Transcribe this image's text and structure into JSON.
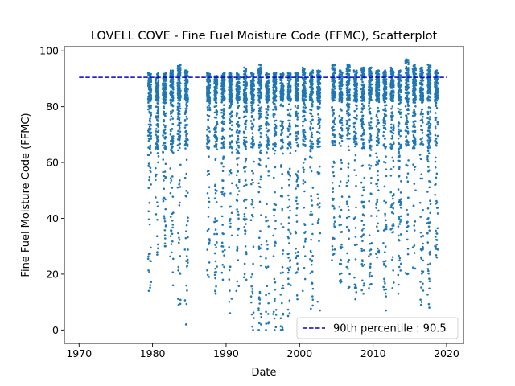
{
  "chart_data": {
    "type": "scatter",
    "title": "LOVELL COVE - Fine Fuel Moisture Code (FFMC), Scatterplot",
    "xlabel": "Date",
    "ylabel": "Fine Fuel Moisture Code (FFMC)",
    "xlim": [
      1968.0,
      2022.3
    ],
    "ylim": [
      -4.8,
      101.5
    ],
    "xticks": [
      1970,
      1980,
      1990,
      2000,
      2010,
      2020
    ],
    "yticks": [
      0,
      20,
      40,
      60,
      80,
      100
    ],
    "point_color": "#1f77b4",
    "reference_line": {
      "label": "90th percentile : 90.5",
      "value": 90.5,
      "x_range": [
        1970,
        2020
      ],
      "color": "#0000cc",
      "style": "dashed"
    },
    "legend_position": "lower-right",
    "series": [
      {
        "description": "Daily FFMC observations, fire seasons (~May–Oct) of each year",
        "seasons": [
          {
            "year": 1979,
            "start": 1979.4,
            "end": 1979.82,
            "min": 14,
            "max": 92
          },
          {
            "year": 1980,
            "start": 1980.4,
            "end": 1980.82,
            "min": 27,
            "max": 92
          },
          {
            "year": 1981,
            "start": 1981.4,
            "end": 1981.82,
            "min": 30,
            "max": 92
          },
          {
            "year": 1982,
            "start": 1982.4,
            "end": 1982.82,
            "min": 16,
            "max": 93
          },
          {
            "year": 1983,
            "start": 1983.4,
            "end": 1983.82,
            "min": 9,
            "max": 95
          },
          {
            "year": 1984,
            "start": 1984.4,
            "end": 1984.82,
            "min": 2,
            "max": 93
          },
          {
            "year": 1987,
            "start": 1987.4,
            "end": 1987.82,
            "min": 19,
            "max": 92
          },
          {
            "year": 1988,
            "start": 1988.4,
            "end": 1988.82,
            "min": 13,
            "max": 91
          },
          {
            "year": 1989,
            "start": 1989.4,
            "end": 1989.82,
            "min": 18,
            "max": 92
          },
          {
            "year": 1990,
            "start": 1990.4,
            "end": 1990.82,
            "min": 6,
            "max": 92
          },
          {
            "year": 1991,
            "start": 1991.4,
            "end": 1991.82,
            "min": 14,
            "max": 92
          },
          {
            "year": 1992,
            "start": 1992.4,
            "end": 1992.82,
            "min": 18,
            "max": 94
          },
          {
            "year": 1993,
            "start": 1993.4,
            "end": 1993.82,
            "min": 0,
            "max": 92
          },
          {
            "year": 1994,
            "start": 1994.4,
            "end": 1994.82,
            "min": 0,
            "max": 95
          },
          {
            "year": 1995,
            "start": 1995.4,
            "end": 1995.82,
            "min": 0,
            "max": 92
          },
          {
            "year": 1996,
            "start": 1996.4,
            "end": 1996.82,
            "min": 0,
            "max": 92
          },
          {
            "year": 1997,
            "start": 1997.4,
            "end": 1997.82,
            "min": 0,
            "max": 92
          },
          {
            "year": 1998,
            "start": 1998.4,
            "end": 1998.82,
            "min": 5,
            "max": 92
          },
          {
            "year": 1999,
            "start": 1999.4,
            "end": 1999.82,
            "min": 11,
            "max": 92
          },
          {
            "year": 2000,
            "start": 2000.4,
            "end": 2000.82,
            "min": 14,
            "max": 94
          },
          {
            "year": 2001,
            "start": 2001.4,
            "end": 2001.82,
            "min": 3,
            "max": 93
          },
          {
            "year": 2002,
            "start": 2002.4,
            "end": 2002.82,
            "min": 7,
            "max": 93
          },
          {
            "year": 2004,
            "start": 2004.4,
            "end": 2004.82,
            "min": 25,
            "max": 95
          },
          {
            "year": 2005,
            "start": 2005.4,
            "end": 2005.82,
            "min": 17,
            "max": 93
          },
          {
            "year": 2006,
            "start": 2006.4,
            "end": 2006.82,
            "min": 15,
            "max": 95
          },
          {
            "year": 2007,
            "start": 2007.4,
            "end": 2007.82,
            "min": 11,
            "max": 93
          },
          {
            "year": 2008,
            "start": 2008.4,
            "end": 2008.82,
            "min": 13,
            "max": 94
          },
          {
            "year": 2009,
            "start": 2009.4,
            "end": 2009.82,
            "min": 15,
            "max": 94
          },
          {
            "year": 2010,
            "start": 2010.4,
            "end": 2010.82,
            "min": 26,
            "max": 93
          },
          {
            "year": 2011,
            "start": 2011.4,
            "end": 2011.82,
            "min": 7,
            "max": 93
          },
          {
            "year": 2012,
            "start": 2012.4,
            "end": 2012.82,
            "min": 15,
            "max": 94
          },
          {
            "year": 2013,
            "start": 2013.4,
            "end": 2013.82,
            "min": 13,
            "max": 93
          },
          {
            "year": 2014,
            "start": 2014.4,
            "end": 2014.82,
            "min": 20,
            "max": 97
          },
          {
            "year": 2015,
            "start": 2015.4,
            "end": 2015.82,
            "min": 22,
            "max": 95
          },
          {
            "year": 2016,
            "start": 2016.4,
            "end": 2016.82,
            "min": 9,
            "max": 94
          },
          {
            "year": 2017,
            "start": 2017.4,
            "end": 2017.82,
            "min": 8,
            "max": 95
          },
          {
            "year": 2018,
            "start": 2018.4,
            "end": 2018.82,
            "min": 26,
            "max": 93
          }
        ]
      }
    ]
  }
}
